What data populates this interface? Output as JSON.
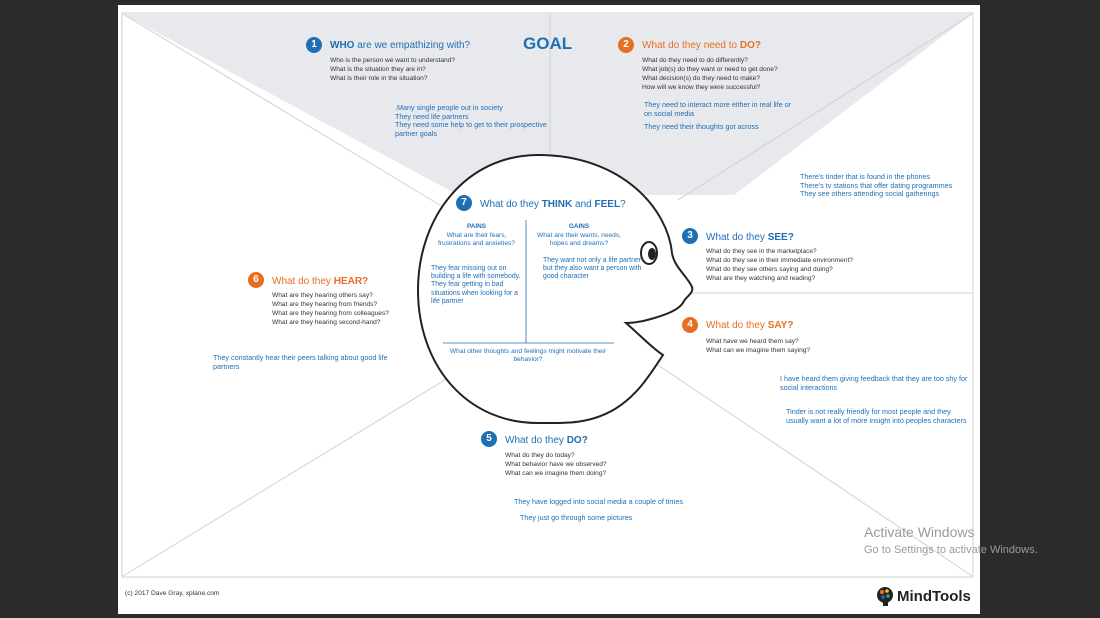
{
  "goal_label": "GOAL",
  "sections": {
    "who": {
      "num": "1",
      "pre": "",
      "highlight": "WHO",
      "post": " are we empathizing with?",
      "questions": [
        "Who is the person we want to understand?",
        "What is the situation they are in?",
        "What is their role in the situation?"
      ],
      "notes": [
        ".Many single people out in society",
        "They need life partners",
        "They need some help to get to their prospective partner goals"
      ]
    },
    "do_need": {
      "num": "2",
      "pre": "What do they need to ",
      "highlight": "DO?",
      "post": "",
      "questions": [
        "What do they need to do differently?",
        "What job(s) do they want or need to get done?",
        "What decision(s) do they need to make?",
        "How will we know they were successful?"
      ],
      "notes": [
        "They need to interact more either in real life or on social media",
        "They need their thoughts got across"
      ]
    },
    "see": {
      "num": "3",
      "pre": "What do they ",
      "highlight": "SEE?",
      "post": "",
      "questions": [
        "What do they see in the marketplace?",
        "What do they see in their immediate environment?",
        "What do they see others saying and doing?",
        "What are they watching and reading?"
      ],
      "notes": [
        "There's tinder that is found in the phones",
        "There's tv stations that offer dating programmes",
        "They see others attending social gatherings"
      ]
    },
    "say": {
      "num": "4",
      "pre": "What do they ",
      "highlight": "SAY?",
      "post": "",
      "questions": [
        "What have we heard them say?",
        "What can we imagine them saying?"
      ],
      "notes": [
        "I have heard them giving feedback that they are too shy for social interactions",
        "Tinder is not really friendly for most people and they usually want a lot of more insight into peoples characters"
      ]
    },
    "do": {
      "num": "5",
      "pre": "What do they ",
      "highlight": "DO?",
      "post": "",
      "questions": [
        "What do they do today?",
        "What behavior have we observed?",
        "What can we imagine them doing?"
      ],
      "notes": [
        "They have logged into social media a couple of times",
        "They just go through some pictures"
      ]
    },
    "hear": {
      "num": "6",
      "pre": "What do they ",
      "highlight": "HEAR?",
      "post": "",
      "questions": [
        "What are they hearing others say?",
        "What are they hearing from friends?",
        "What are they hearing from colleagues?",
        "What are they hearing second-hand?"
      ],
      "notes": [
        "They constantly hear their peers talking about good life partners"
      ]
    },
    "think": {
      "num": "7",
      "pre": "What do they ",
      "highlight": "THINK",
      "mid": " and ",
      "highlight2": "FEEL",
      "post": "?",
      "pains_title": "PAINS",
      "pains_question": "What are their fears, frustrations and anxieties?",
      "pains_notes": "They fear missing out on building a life with somebody. They fear getting in bad situations when looking for a life partner",
      "gains_title": "GAINS",
      "gains_question": "What are their wants, needs, hopes and dreams?",
      "gains_notes": "They want not only a life partner but they also want a person with good character",
      "other": "What other thoughts and feelings might motivate their behavior?"
    }
  },
  "footer": {
    "copyright": "(c) 2017 Dave Gray, xplane.com",
    "logo_text": "MindTools"
  },
  "watermark": {
    "line1": "Activate Windows",
    "line2": "Go to Settings to activate Windows."
  },
  "colors": {
    "blue": "#1f6fb5",
    "orange": "#e76f24",
    "goal_fill": "#e7e9ec"
  }
}
